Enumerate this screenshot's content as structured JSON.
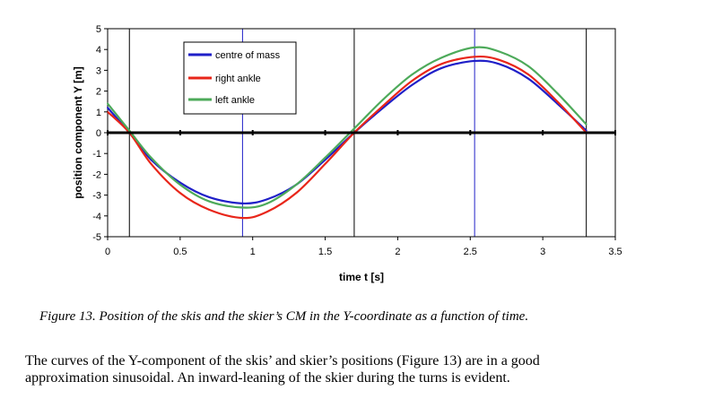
{
  "chart_data": {
    "type": "line",
    "xlabel": "time t [s]",
    "ylabel": "position component Y [m]",
    "xlim": [
      0,
      3.5
    ],
    "ylim": [
      -5,
      5
    ],
    "xticks": [
      "0",
      "0.5",
      "1",
      "1.5",
      "2",
      "2.5",
      "3",
      "3.5"
    ],
    "yticks": [
      "5",
      "4",
      "3",
      "2",
      "1",
      "0",
      "-1",
      "-2",
      "-3",
      "-4",
      "-5"
    ],
    "vertical_lines": [
      0.15,
      0.93,
      1.7,
      2.53,
      3.3
    ],
    "legend_position": "top-left",
    "series": [
      {
        "name": "centre of mass",
        "color": "#1f1fc8",
        "x": [
          0.0,
          0.15,
          0.3,
          0.5,
          0.7,
          0.93,
          1.1,
          1.3,
          1.5,
          1.7,
          1.9,
          2.1,
          2.3,
          2.53,
          2.7,
          2.9,
          3.1,
          3.3
        ],
        "y": [
          1.2,
          0.0,
          -1.3,
          -2.4,
          -3.1,
          -3.4,
          -3.2,
          -2.5,
          -1.3,
          0.0,
          1.2,
          2.3,
          3.1,
          3.45,
          3.3,
          2.6,
          1.4,
          0.1
        ]
      },
      {
        "name": "right ankle",
        "color": "#e8261a",
        "x": [
          0.0,
          0.15,
          0.3,
          0.5,
          0.7,
          0.93,
          1.1,
          1.3,
          1.5,
          1.7,
          1.9,
          2.1,
          2.3,
          2.53,
          2.7,
          2.9,
          3.1,
          3.3
        ],
        "y": [
          1.0,
          0.0,
          -1.5,
          -2.9,
          -3.7,
          -4.1,
          -3.8,
          -2.9,
          -1.5,
          0.0,
          1.3,
          2.5,
          3.3,
          3.65,
          3.5,
          2.8,
          1.5,
          0.0
        ]
      },
      {
        "name": "left ankle",
        "color": "#4daa5a",
        "x": [
          0.0,
          0.15,
          0.3,
          0.5,
          0.7,
          0.93,
          1.1,
          1.3,
          1.5,
          1.7,
          1.9,
          2.1,
          2.3,
          2.53,
          2.7,
          2.9,
          3.1,
          3.3
        ],
        "y": [
          1.4,
          0.1,
          -1.2,
          -2.5,
          -3.3,
          -3.6,
          -3.4,
          -2.5,
          -1.2,
          0.2,
          1.6,
          2.8,
          3.6,
          4.1,
          3.9,
          3.2,
          1.9,
          0.4
        ]
      }
    ]
  },
  "caption": "Figure 13.  Position of the skis and the skier’s CM in the Y-coordinate as a function of time.",
  "body": {
    "line1": "The curves of the Y-component of the skis’ and skier’s positions (Figure 13) are in a good",
    "line2": "approximation sinusoidal. An inward-leaning of the skier during the turns is evident."
  }
}
